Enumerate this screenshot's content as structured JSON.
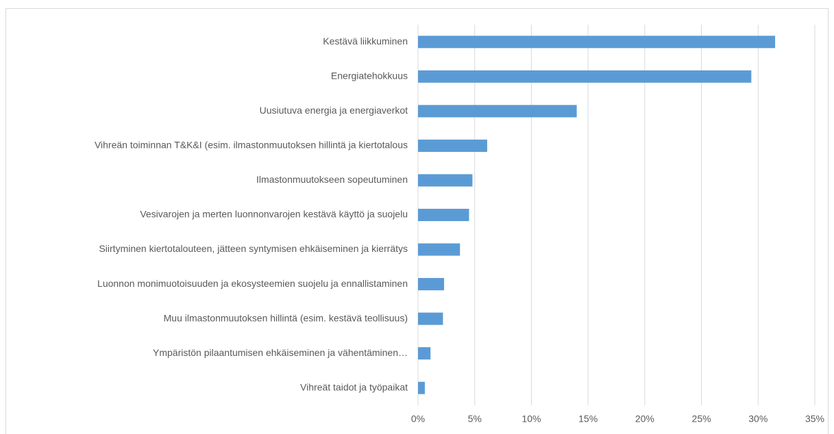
{
  "chart_data": {
    "type": "bar",
    "orientation": "horizontal",
    "categories": [
      "Kestävä liikkuminen",
      "Energiatehokkuus",
      "Uusiutuva energia ja energiaverkot",
      "Vihreän toiminnan T&K&I (esim. ilmastonmuutoksen hillintä ja kiertotalous",
      "Ilmastonmuutokseen sopeutuminen",
      "Vesivarojen ja merten luonnonvarojen kestävä käyttö ja suojelu",
      "Siirtyminen kiertotalouteen, jätteen syntymisen ehkäiseminen ja kierrätys",
      "Luonnon monimuotoisuuden ja ekosysteemien suojelu ja ennallistaminen",
      "Muu ilmastonmuutoksen hillintä (esim. kestävä teollisuus)",
      "Ympäristön pilaantumisen ehkäiseminen ja vähentäminen…",
      "Vihreät taidot ja työpaikat"
    ],
    "values": [
      31.5,
      29.4,
      14.0,
      6.1,
      4.8,
      4.5,
      3.7,
      2.3,
      2.2,
      1.1,
      0.6
    ],
    "color": "#5b9bd5",
    "xlim": [
      0,
      35
    ],
    "xticks": [
      {
        "value": 0,
        "label": "0%"
      },
      {
        "value": 5,
        "label": "5%"
      },
      {
        "value": 10,
        "label": "10%"
      },
      {
        "value": 15,
        "label": "15%"
      },
      {
        "value": 20,
        "label": "20%"
      },
      {
        "value": 25,
        "label": "25%"
      },
      {
        "value": 30,
        "label": "30%"
      },
      {
        "value": 35,
        "label": "35%"
      }
    ],
    "grid": true
  }
}
